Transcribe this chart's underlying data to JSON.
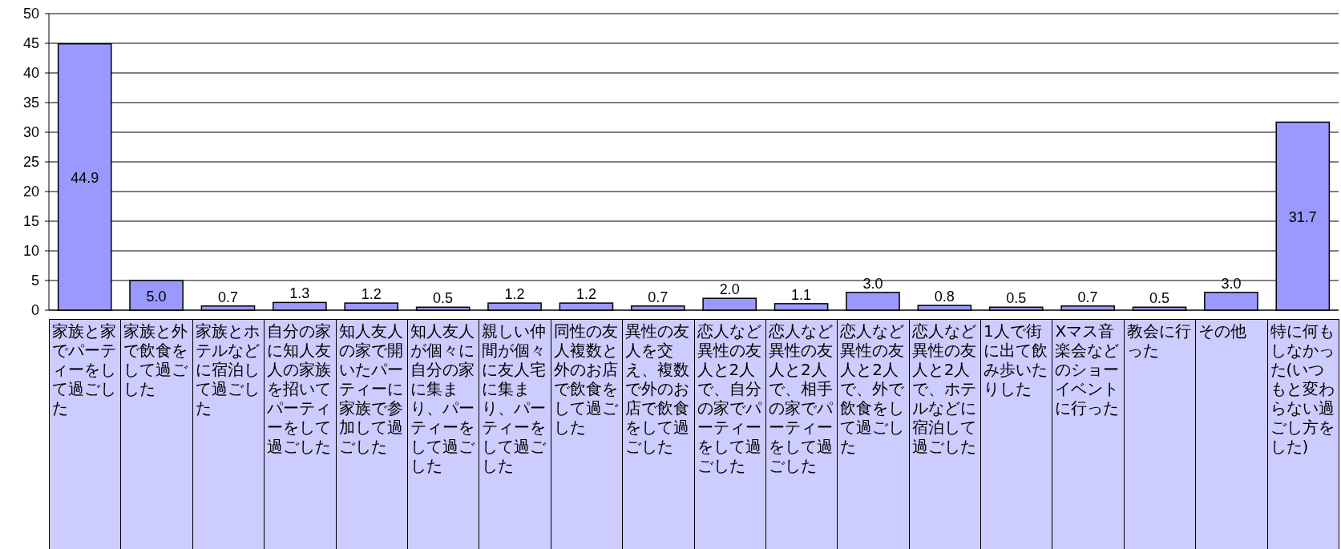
{
  "chart_data": {
    "type": "bar",
    "categories": [
      "家族と家でパーティーをして過ごした",
      "家族と外で飲食をして過ごした",
      "家族とホテルなどに宿泊して過ごした",
      "自分の家に知人友人の家族を招いてパーティーをして過ごした",
      "知人友人の家で開いたパーティーに家族で参加して過ごした",
      "知人友人が個々に自分の家に集まり、パーティーをして過ごした",
      "親しい仲間が個々に友人宅に集まり、パーティーをして過ごした",
      "同性の友人複数と外のお店で飲食をして過ごした",
      "異性の友人を交え、複数で外のお店で飲食をして過ごした",
      "恋人など異性の友人と2人で、自分の家でパーティーをして過ごした",
      "恋人など異性の友人と2人で、相手の家でパーティーをして過ごした",
      "恋人など異性の友人と2人で、外で飲食をして過ごした",
      "恋人など異性の友人と2人で、ホテルなどに宿泊して過ごした",
      "1人で街に出て飲み歩いたりした",
      "Xマス音楽会などのショーイベントに行った",
      "教会に行った",
      "その他",
      "特に何もしなかった(いつもと変わらない過ごし方をした)"
    ],
    "values": [
      44.9,
      5.0,
      0.7,
      1.3,
      1.2,
      0.5,
      1.2,
      1.2,
      0.7,
      2.0,
      1.1,
      3.0,
      0.8,
      0.5,
      0.7,
      0.5,
      3.0,
      31.7
    ],
    "value_labels": [
      "44.9",
      "5.0",
      "0.7",
      "1.3",
      "1.2",
      "0.5",
      "1.2",
      "1.2",
      "0.7",
      "2.0",
      "1.1",
      "3.0",
      "0.8",
      "0.5",
      "0.7",
      "0.5",
      "3.0",
      "31.7"
    ],
    "color": "#9999ff",
    "ylim": [
      0,
      50
    ],
    "yticks": [
      0,
      5,
      10,
      15,
      20,
      25,
      30,
      35,
      40,
      45,
      50
    ],
    "grid": "y"
  }
}
